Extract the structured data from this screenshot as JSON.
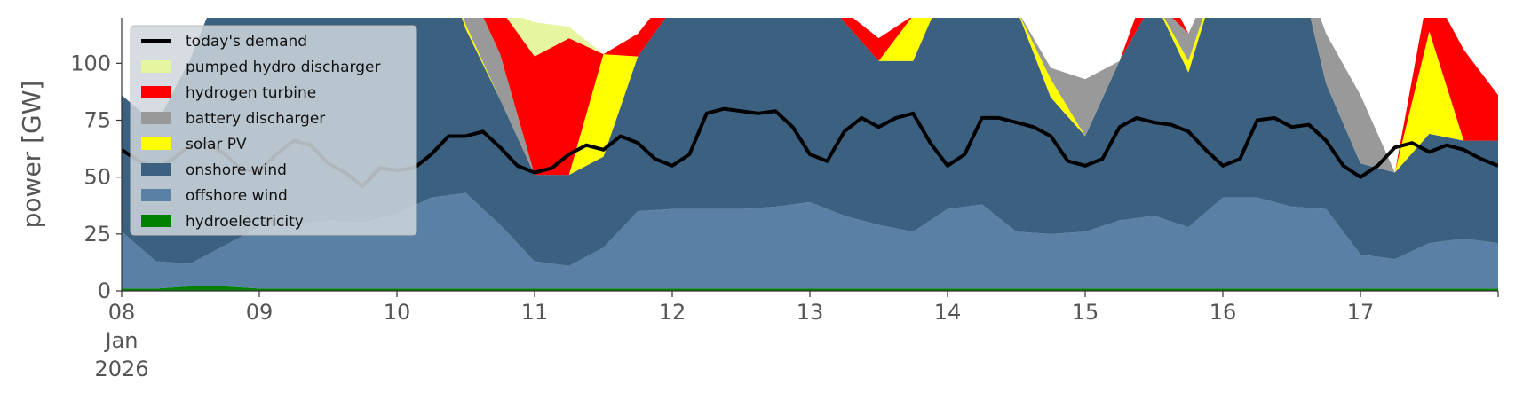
{
  "chart_data": {
    "type": "area",
    "ylabel": "power [GW]",
    "xlabel": "",
    "ylim": [
      0,
      120
    ],
    "xlim": [
      0,
      240
    ],
    "x_unit": "hours since 2026-01-08 00:00",
    "y_ticks": [
      0,
      25,
      50,
      75,
      100
    ],
    "x_ticks": [
      {
        "at": 0,
        "lines": [
          "08",
          "Jan",
          "2026"
        ]
      },
      {
        "at": 24,
        "lines": [
          "09"
        ]
      },
      {
        "at": 48,
        "lines": [
          "10"
        ]
      },
      {
        "at": 72,
        "lines": [
          "11"
        ]
      },
      {
        "at": 96,
        "lines": [
          "12"
        ]
      },
      {
        "at": 120,
        "lines": [
          "13"
        ]
      },
      {
        "at": 144,
        "lines": [
          "14"
        ]
      },
      {
        "at": 168,
        "lines": [
          "15"
        ]
      },
      {
        "at": 192,
        "lines": [
          "16"
        ]
      },
      {
        "at": 216,
        "lines": [
          "17"
        ]
      }
    ],
    "grid": false,
    "legend_position": "top-left",
    "stack_hours": [
      0,
      6,
      12,
      18,
      24,
      30,
      36,
      42,
      48,
      54,
      60,
      66,
      72,
      78,
      84,
      90,
      96,
      102,
      108,
      114,
      120,
      126,
      132,
      138,
      144,
      150,
      156,
      162,
      168,
      174,
      180,
      186,
      192,
      198,
      204,
      210,
      216,
      222,
      228,
      234,
      240
    ],
    "series": [
      {
        "name": "hydroelectricity",
        "color": "#008000",
        "values": [
          1,
          1,
          2,
          2,
          1,
          1,
          1,
          1,
          1,
          1,
          1,
          1,
          1,
          1,
          1,
          1,
          1,
          1,
          1,
          1,
          1,
          1,
          1,
          1,
          1,
          1,
          1,
          1,
          1,
          1,
          1,
          1,
          1,
          1,
          1,
          1,
          1,
          1,
          1,
          1,
          1
        ]
      },
      {
        "name": "offshore wind",
        "color": "#5b80a5",
        "values": [
          25,
          12,
          10,
          18,
          27,
          28,
          30,
          29,
          33,
          40,
          42,
          28,
          12,
          10,
          18,
          34,
          35,
          35,
          35,
          36,
          38,
          32,
          28,
          25,
          35,
          37,
          25,
          24,
          25,
          30,
          32,
          27,
          40,
          40,
          36,
          35,
          15,
          13,
          20,
          22,
          20
        ]
      },
      {
        "name": "onshore wind",
        "color": "#3b6080",
        "values": [
          60,
          60,
          90,
          120,
          120,
          120,
          120,
          120,
          122,
          118,
          72,
          55,
          38,
          40,
          40,
          68,
          88,
          100,
          92,
          98,
          100,
          85,
          72,
          75,
          100,
          115,
          98,
          60,
          42,
          70,
          95,
          68,
          105,
          120,
          118,
          55,
          40,
          38,
          48,
          43,
          45
        ]
      },
      {
        "name": "solar PV",
        "color": "#ffff00",
        "values": [
          0,
          0,
          0,
          0,
          0,
          0,
          0,
          0,
          0,
          5,
          2,
          0,
          0,
          0,
          45,
          0,
          0,
          0,
          5,
          2,
          0,
          0,
          0,
          20,
          0,
          0,
          0,
          8,
          0,
          0,
          0,
          5,
          0,
          0,
          0,
          0,
          0,
          0,
          45,
          0,
          0
        ]
      },
      {
        "name": "battery discharger",
        "color": "#999999",
        "values": [
          0,
          0,
          0,
          0,
          0,
          0,
          0,
          0,
          0,
          0,
          20,
          20,
          0,
          0,
          0,
          0,
          0,
          0,
          0,
          0,
          0,
          0,
          0,
          0,
          0,
          0,
          0,
          5,
          25,
          0,
          0,
          12,
          0,
          0,
          0,
          22,
          30,
          0,
          0,
          0,
          0
        ]
      },
      {
        "name": "hydrogen turbine",
        "color": "#ff0000",
        "values": [
          0,
          0,
          0,
          0,
          0,
          0,
          0,
          0,
          0,
          0,
          0,
          20,
          52,
          60,
          0,
          10,
          8,
          0,
          10,
          4,
          2,
          5,
          10,
          0,
          0,
          0,
          0,
          0,
          0,
          0,
          15,
          0,
          0,
          0,
          0,
          0,
          0,
          0,
          20,
          40,
          20
        ]
      },
      {
        "name": "pumped hydro discharger",
        "color": "#e6f5a0",
        "values": [
          0,
          0,
          0,
          0,
          0,
          0,
          0,
          0,
          0,
          0,
          0,
          0,
          15,
          5,
          0,
          0,
          0,
          0,
          0,
          0,
          0,
          0,
          0,
          0,
          0,
          0,
          0,
          0,
          0,
          0,
          0,
          0,
          0,
          0,
          0,
          0,
          0,
          0,
          0,
          0,
          0
        ]
      }
    ],
    "demand": {
      "name": "today's demand",
      "color": "#000000",
      "hours": [
        0,
        3,
        6,
        9,
        12,
        15,
        18,
        21,
        24,
        27,
        30,
        33,
        36,
        39,
        42,
        45,
        48,
        51,
        54,
        57,
        60,
        63,
        66,
        69,
        72,
        75,
        78,
        81,
        84,
        87,
        90,
        93,
        96,
        99,
        102,
        105,
        108,
        111,
        114,
        117,
        120,
        123,
        126,
        129,
        132,
        135,
        138,
        141,
        144,
        147,
        150,
        153,
        156,
        159,
        162,
        165,
        168,
        171,
        174,
        177,
        180,
        183,
        186,
        189,
        192,
        195,
        198,
        201,
        204,
        207,
        210,
        213,
        216,
        219,
        222,
        225,
        228,
        231,
        234,
        237,
        240
      ],
      "values": [
        62,
        57,
        54,
        58,
        64,
        65,
        60,
        53,
        53,
        60,
        66,
        64,
        56,
        52,
        46,
        54,
        53,
        54,
        60,
        68,
        68,
        70,
        63,
        55,
        52,
        54,
        60,
        64,
        62,
        68,
        65,
        58,
        55,
        60,
        78,
        80,
        79,
        78,
        79,
        72,
        60,
        57,
        70,
        76,
        72,
        76,
        78,
        65,
        55,
        60,
        76,
        76,
        74,
        72,
        68,
        57,
        55,
        58,
        72,
        76,
        74,
        73,
        70,
        62,
        55,
        58,
        75,
        76,
        72,
        73,
        66,
        55,
        50,
        55,
        63,
        65,
        61,
        64,
        62,
        58,
        55
      ]
    },
    "legend": [
      {
        "label": "today's demand",
        "kind": "line",
        "color": "#000000"
      },
      {
        "label": "pumped hydro discharger",
        "kind": "patch",
        "color": "#e6f5a0"
      },
      {
        "label": "hydrogen turbine",
        "kind": "patch",
        "color": "#ff0000"
      },
      {
        "label": "battery discharger",
        "kind": "patch",
        "color": "#999999"
      },
      {
        "label": "solar PV",
        "kind": "patch",
        "color": "#ffff00"
      },
      {
        "label": "onshore wind",
        "kind": "patch",
        "color": "#3b6080"
      },
      {
        "label": "offshore wind",
        "kind": "patch",
        "color": "#5b80a5"
      },
      {
        "label": "hydroelectricity",
        "kind": "patch",
        "color": "#008000"
      }
    ]
  }
}
